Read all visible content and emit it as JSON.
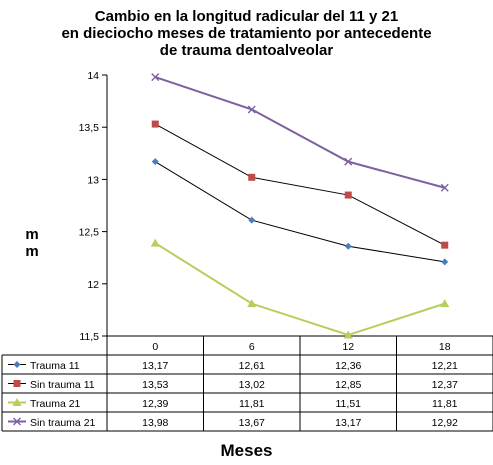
{
  "chart_data": {
    "type": "line",
    "title_lines": [
      "Cambio en la longitud radicular del 11 y 21",
      "en dieciocho meses de tratamiento por antecedente",
      "de trauma dentoalveolar"
    ],
    "ylabel_lines": [
      "m",
      "m"
    ],
    "xlabel": "Meses",
    "categories": [
      "0",
      "6",
      "12",
      "18"
    ],
    "ylim": [
      11.5,
      14
    ],
    "yticks": [
      11.5,
      12,
      12.5,
      13,
      13.5,
      14
    ],
    "ytick_labels": [
      "11,5",
      "12",
      "12,5",
      "13",
      "13,5",
      "14"
    ],
    "grid": false,
    "legend": "data-table",
    "series": [
      {
        "name": "Trauma 11",
        "values": [
          13.17,
          12.61,
          12.36,
          12.21
        ],
        "labels": [
          "13,17",
          "12,61",
          "12,36",
          "12,21"
        ],
        "color": "#000000",
        "marker_color": "#4a7ebb",
        "marker": "diamond"
      },
      {
        "name": "Sin trauma 11",
        "values": [
          13.53,
          13.02,
          12.85,
          12.37
        ],
        "labels": [
          "13,53",
          "13,02",
          "12,85",
          "12,37"
        ],
        "color": "#000000",
        "marker_color": "#be4b48",
        "marker": "square"
      },
      {
        "name": "Trauma 21",
        "values": [
          12.39,
          11.81,
          11.51,
          11.81
        ],
        "labels": [
          "12,39",
          "11,81",
          "11,51",
          "11,81"
        ],
        "color": "#b5cf5c",
        "marker_color": "#b5cf5c",
        "marker": "triangle"
      },
      {
        "name": "Sin trauma 21",
        "values": [
          13.98,
          13.67,
          13.17,
          12.92
        ],
        "labels": [
          "13,98",
          "13,67",
          "13,17",
          "12,92"
        ],
        "color": "#7d60a0",
        "marker_color": "#7d60a0",
        "marker": "x"
      }
    ]
  }
}
